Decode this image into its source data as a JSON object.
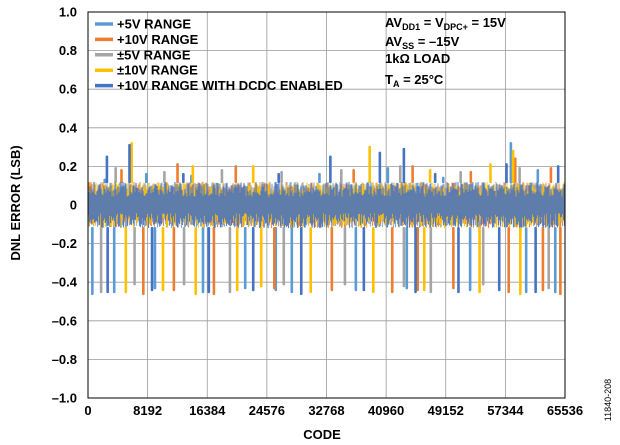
{
  "chart_data": {
    "type": "line",
    "xlabel": "CODE",
    "ylabel": "DNL ERROR (LSB)",
    "xlim": [
      0,
      65536
    ],
    "ylim": [
      -1.0,
      1.0
    ],
    "x_ticks": [
      0,
      8192,
      16384,
      24576,
      32768,
      40960,
      49152,
      57344,
      65536
    ],
    "y_ticks": [
      "1.0",
      "0.8",
      "0.6",
      "0.4",
      "0.2",
      "0",
      "–0.2",
      "–0.4",
      "–0.6",
      "–0.8",
      "–1.0"
    ],
    "y_tick_values": [
      1.0,
      0.8,
      0.6,
      0.4,
      0.2,
      0,
      -0.2,
      -0.4,
      -0.6,
      -0.8,
      -1.0
    ],
    "grid": true,
    "legend_position": "top-left",
    "noise_band": [
      -0.12,
      0.12
    ],
    "series": [
      {
        "name": "+5V RANGE",
        "color": "#5b9bd5",
        "spikes_up": [
          [
            2300,
            0.13
          ],
          [
            8000,
            0.16
          ],
          [
            14200,
            0.15
          ],
          [
            31800,
            0.16
          ],
          [
            41200,
            0.19
          ],
          [
            48800,
            0.14
          ],
          [
            58100,
            0.32
          ],
          [
            61800,
            0.18
          ]
        ],
        "spikes_down": [
          [
            600,
            -0.46
          ],
          [
            3600,
            -0.45
          ],
          [
            9200,
            -0.43
          ],
          [
            15800,
            -0.45
          ],
          [
            21600,
            -0.43
          ],
          [
            25800,
            -0.44
          ],
          [
            28000,
            -0.45
          ],
          [
            36800,
            -0.44
          ],
          [
            43800,
            -0.43
          ],
          [
            52500,
            -0.44
          ],
          [
            60200,
            -0.45
          ],
          [
            64200,
            -0.45
          ]
        ]
      },
      {
        "name": "+10V RANGE",
        "color": "#ed7d31",
        "spikes_up": [
          [
            4600,
            0.18
          ],
          [
            12300,
            0.21
          ],
          [
            20300,
            0.2
          ],
          [
            36500,
            0.18
          ],
          [
            44600,
            0.2
          ],
          [
            52600,
            0.17
          ],
          [
            58700,
            0.24
          ],
          [
            63600,
            0.19
          ]
        ],
        "spikes_down": [
          [
            7600,
            -0.46
          ],
          [
            11800,
            -0.44
          ],
          [
            17300,
            -0.46
          ],
          [
            25600,
            -0.43
          ],
          [
            33500,
            -0.44
          ],
          [
            41800,
            -0.45
          ],
          [
            45300,
            -0.44
          ],
          [
            50200,
            -0.43
          ],
          [
            57800,
            -0.45
          ],
          [
            62500,
            -0.44
          ],
          [
            64900,
            -0.46
          ]
        ]
      },
      {
        "name": "±5V RANGE",
        "color": "#a5a5a5",
        "spikes_up": [
          [
            3800,
            0.19
          ],
          [
            10500,
            0.17
          ],
          [
            18400,
            0.18
          ],
          [
            26600,
            0.17
          ],
          [
            34800,
            0.18
          ],
          [
            42900,
            0.2
          ],
          [
            51200,
            0.17
          ],
          [
            59300,
            0.19
          ]
        ],
        "spikes_down": [
          [
            1800,
            -0.45
          ],
          [
            6400,
            -0.41
          ],
          [
            13200,
            -0.41
          ],
          [
            19500,
            -0.45
          ],
          [
            26900,
            -0.41
          ],
          [
            35300,
            -0.41
          ],
          [
            43400,
            -0.42
          ],
          [
            47100,
            -0.45
          ],
          [
            54300,
            -0.41
          ],
          [
            63300,
            -0.43
          ]
        ]
      },
      {
        "name": "±10V RANGE",
        "color": "#ffc000",
        "spikes_up": [
          [
            6000,
            0.32
          ],
          [
            14400,
            0.2
          ],
          [
            22700,
            0.2
          ],
          [
            38700,
            0.3
          ],
          [
            47000,
            0.18
          ],
          [
            55300,
            0.21
          ],
          [
            58400,
            0.28
          ]
        ],
        "spikes_down": [
          [
            5200,
            -0.45
          ],
          [
            10300,
            -0.44
          ],
          [
            14800,
            -0.46
          ],
          [
            20500,
            -0.44
          ],
          [
            23800,
            -0.42
          ],
          [
            30600,
            -0.45
          ],
          [
            39200,
            -0.45
          ],
          [
            46200,
            -0.44
          ],
          [
            53800,
            -0.45
          ],
          [
            59400,
            -0.46
          ]
        ]
      },
      {
        "name": "+10V RANGE WITH DCDC ENABLED",
        "color": "#4472c4",
        "spikes_up": [
          [
            2600,
            0.25
          ],
          [
            5700,
            0.31
          ],
          [
            13100,
            0.16
          ],
          [
            26200,
            0.16
          ],
          [
            33300,
            0.25
          ],
          [
            40100,
            0.27
          ],
          [
            43400,
            0.29
          ],
          [
            47700,
            0.16
          ],
          [
            57500,
            0.21
          ],
          [
            64600,
            0.2
          ]
        ],
        "spikes_down": [
          [
            2700,
            -0.45
          ],
          [
            8800,
            -0.44
          ],
          [
            16600,
            -0.45
          ],
          [
            22700,
            -0.44
          ],
          [
            29300,
            -0.46
          ],
          [
            37900,
            -0.44
          ],
          [
            45000,
            -0.45
          ],
          [
            50900,
            -0.45
          ],
          [
            56500,
            -0.44
          ],
          [
            61500,
            -0.45
          ]
        ]
      }
    ],
    "conditions": [
      {
        "parts": [
          {
            "t": "AV"
          },
          {
            "t": "DD1",
            "sub": true
          },
          {
            "t": " = V"
          },
          {
            "t": "DPC+",
            "sub": true
          },
          {
            "t": " = 15V"
          }
        ]
      },
      {
        "parts": [
          {
            "t": "AV"
          },
          {
            "t": "SS",
            "sub": true
          },
          {
            "t": " = –15V"
          }
        ]
      },
      {
        "parts": [
          {
            "t": "1kΩ LOAD"
          }
        ]
      },
      {
        "parts": [
          {
            "t": "T"
          },
          {
            "t": "A",
            "sub": true
          },
          {
            "t": " = 25°C"
          }
        ]
      }
    ]
  },
  "figure_id": "11840-208"
}
